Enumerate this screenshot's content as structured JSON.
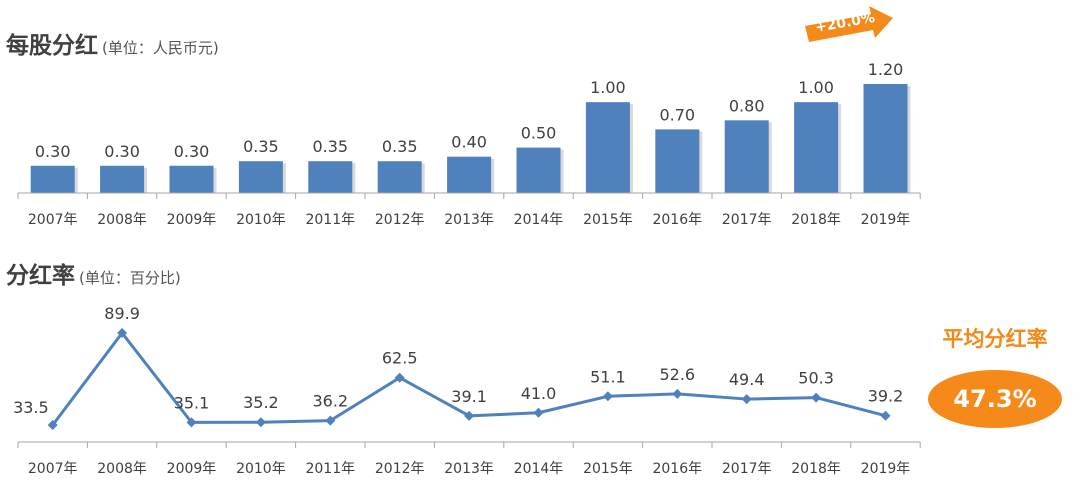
{
  "header": {
    "dividend_title": "每股分红",
    "dividend_unit": "(单位：人民币元)",
    "payout_title": "分红率",
    "payout_unit": "(单位：百分比)"
  },
  "growth_badge": {
    "text": "+20.0%",
    "color": "#f58a1a"
  },
  "average": {
    "label": "平均分红率",
    "value": "47.3%",
    "color": "#f58a1a"
  },
  "colors": {
    "bar": "#4f81bd",
    "line": "#4f81bd",
    "axis": "#a6a6a6",
    "text": "#404040"
  },
  "chart_data": [
    {
      "type": "bar",
      "title": "每股分红",
      "ylabel": "(单位：人民币元)",
      "categories": [
        "2007年",
        "2008年",
        "2009年",
        "2010年",
        "2011年",
        "2012年",
        "2013年",
        "2014年",
        "2015年",
        "2016年",
        "2017年",
        "2018年",
        "2019年"
      ],
      "values": [
        0.3,
        0.3,
        0.3,
        0.35,
        0.35,
        0.35,
        0.4,
        0.5,
        1.0,
        0.7,
        0.8,
        1.0,
        1.2
      ],
      "labels": [
        "0.30",
        "0.30",
        "0.30",
        "0.35",
        "0.35",
        "0.35",
        "0.40",
        "0.50",
        "1.00",
        "0.70",
        "0.80",
        "1.00",
        "1.20"
      ],
      "ylim": [
        0,
        1.2
      ],
      "grid": false
    },
    {
      "type": "line",
      "title": "分红率",
      "ylabel": "(单位：百分比)",
      "categories": [
        "2007年",
        "2008年",
        "2009年",
        "2010年",
        "2011年",
        "2012年",
        "2013年",
        "2014年",
        "2015年",
        "2016年",
        "2017年",
        "2018年",
        "2019年"
      ],
      "values": [
        33.5,
        89.9,
        35.1,
        35.2,
        36.2,
        62.5,
        39.1,
        41.0,
        51.1,
        52.6,
        49.4,
        50.3,
        39.2
      ],
      "labels": [
        "33.5",
        "89.9",
        "35.1",
        "35.2",
        "36.2",
        "62.5",
        "39.1",
        "41.0",
        "51.1",
        "52.6",
        "49.4",
        "50.3",
        "39.2"
      ],
      "ylim": [
        20,
        90
      ],
      "grid": false
    }
  ]
}
